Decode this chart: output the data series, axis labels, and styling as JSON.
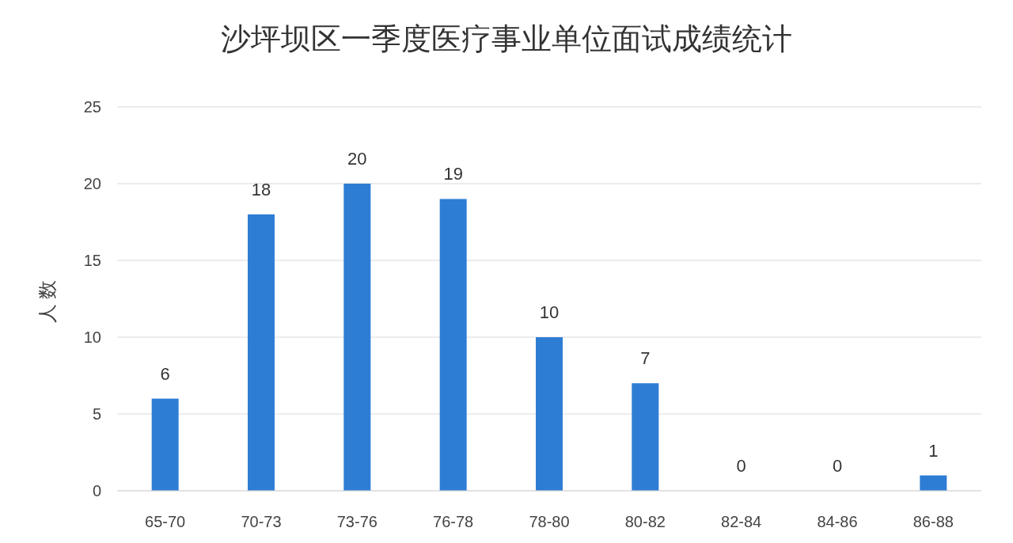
{
  "chart_data": {
    "type": "bar",
    "title": "沙坪坝区一季度医疗事业单位面试成绩统计",
    "ylabel": "人数",
    "categories": [
      "65-70",
      "70-73",
      "73-76",
      "76-78",
      "78-80",
      "80-82",
      "82-84",
      "84-86",
      "86-88"
    ],
    "values": [
      6,
      18,
      20,
      19,
      10,
      7,
      0,
      0,
      1
    ],
    "color": "#2e7dd4",
    "ylim": [
      0,
      25
    ],
    "yticks": [
      0,
      5,
      10,
      15,
      20,
      25
    ],
    "grid": "y",
    "data_labels": true
  }
}
